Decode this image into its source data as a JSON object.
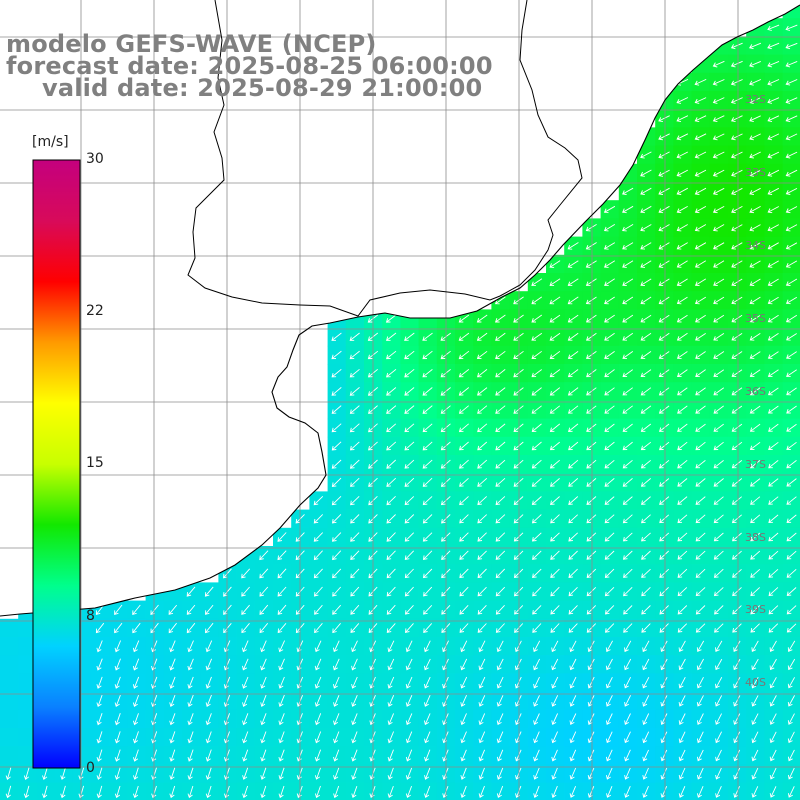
{
  "header": {
    "line1": "modelo GEFS-WAVE (NCEP)",
    "line2": "forecast date: 2025-08-25 06:00:00",
    "line3": "valid date: 2025-08-29 21:00:00"
  },
  "colorbar": {
    "unit": "[m/s]",
    "min": 0,
    "max": 30,
    "ticks": [
      "30",
      "22",
      "15",
      "8",
      "0"
    ],
    "colors": [
      "#0000ff",
      "#0a80ff",
      "#00d2ff",
      "#00ff8c",
      "#12e800",
      "#c8ff00",
      "#ffff00",
      "#ff9a00",
      "#ff0000",
      "#d80a5a",
      "#c4007e"
    ]
  },
  "latitude_labels": [
    "32S",
    "33S",
    "34S",
    "35S",
    "36S",
    "37S",
    "38S",
    "39S",
    "40S"
  ],
  "map": {
    "land_color": "#ffffff",
    "coast_color": "#000000",
    "grid_color": "#8c8c8c",
    "arrow_color": "#ffffff",
    "wind_direction": "from northeast toward southwest"
  }
}
